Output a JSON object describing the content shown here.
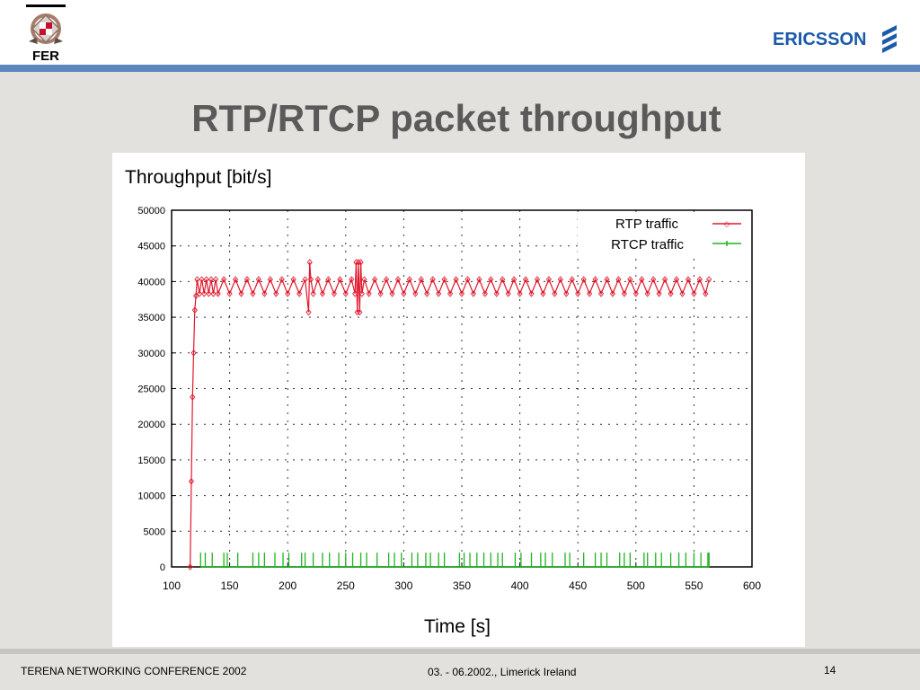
{
  "header": {
    "left_logo_text": "FER",
    "right_logo_text": "ERICSSON"
  },
  "slide": {
    "title": "RTP/RTCP packet throughput"
  },
  "colors": {
    "header_rule": "#5b86be",
    "title": "#5a5a5a",
    "rtp": "#e0182c",
    "rtcp": "#1fb41f",
    "grid": "#000000"
  },
  "chart_data": {
    "type": "line",
    "title": "Throughput [bit/s]",
    "xlabel": "Time [s]",
    "ylabel": "Throughput [bit/s]",
    "xlim": [
      100,
      600
    ],
    "ylim": [
      0,
      50000
    ],
    "xticks": [
      "100",
      "150",
      "200",
      "250",
      "300",
      "350",
      "400",
      "450",
      "500",
      "550",
      "600"
    ],
    "yticks": [
      "0",
      "5000",
      "10000",
      "15000",
      "20000",
      "25000",
      "30000",
      "35000",
      "40000",
      "45000",
      "50000"
    ],
    "grid": true,
    "legend_position": "top-right",
    "series": [
      {
        "name": "RTP traffic",
        "x": [
          116,
          117,
          118,
          119,
          120,
          121,
          122,
          124,
          126,
          128,
          130,
          132,
          134,
          136,
          138,
          140,
          145,
          150,
          155,
          160,
          165,
          170,
          175,
          180,
          185,
          190,
          195,
          200,
          205,
          210,
          215,
          218,
          219,
          220,
          222,
          226,
          230,
          235,
          240,
          245,
          250,
          255,
          258,
          259,
          260,
          261,
          262,
          263,
          264,
          266,
          270,
          275,
          280,
          285,
          290,
          295,
          300,
          305,
          310,
          315,
          320,
          325,
          330,
          335,
          340,
          345,
          350,
          355,
          360,
          365,
          370,
          375,
          380,
          385,
          390,
          395,
          400,
          405,
          410,
          415,
          420,
          425,
          430,
          435,
          440,
          445,
          450,
          455,
          460,
          465,
          470,
          475,
          480,
          485,
          490,
          495,
          500,
          505,
          510,
          515,
          520,
          525,
          530,
          535,
          540,
          545,
          550,
          555,
          560,
          563
        ],
        "y": [
          0,
          12000,
          23800,
          30000,
          36000,
          38000,
          40300,
          38300,
          40300,
          38300,
          40300,
          38300,
          40300,
          38300,
          40300,
          38300,
          40300,
          38300,
          40300,
          38300,
          40300,
          38300,
          40300,
          38300,
          40300,
          38300,
          40300,
          38300,
          40300,
          38300,
          40300,
          35700,
          42700,
          40300,
          38300,
          40300,
          38300,
          40300,
          38300,
          40300,
          38300,
          40300,
          38300,
          42700,
          35700,
          42700,
          35700,
          42700,
          38300,
          40300,
          38300,
          40300,
          38300,
          40300,
          38300,
          40300,
          38300,
          40300,
          38300,
          40300,
          38300,
          40300,
          38300,
          40300,
          38300,
          40300,
          38300,
          40300,
          38300,
          40300,
          38300,
          40300,
          38300,
          40300,
          38300,
          40300,
          38300,
          40300,
          38300,
          40300,
          38300,
          40300,
          38300,
          40300,
          38300,
          40300,
          38300,
          40300,
          38300,
          40300,
          38300,
          40300,
          38300,
          40300,
          38300,
          40300,
          38300,
          40300,
          38300,
          40300,
          38300,
          40300,
          38300,
          40300,
          38300,
          40300,
          38300,
          40300,
          38300,
          40300
        ]
      },
      {
        "name": "RTCP traffic",
        "x": [
          125,
          129,
          135,
          145,
          148,
          157,
          170,
          175,
          180,
          189,
          196,
          201,
          212,
          215,
          222,
          230,
          236,
          244,
          250,
          256,
          263,
          268,
          277,
          287,
          292,
          298,
          307,
          312,
          319,
          323,
          330,
          335,
          348,
          352,
          357,
          363,
          369,
          375,
          381,
          385,
          396,
          401,
          410,
          418,
          422,
          428,
          439,
          443,
          455,
          465,
          470,
          475,
          486,
          490,
          495,
          507,
          510,
          517,
          522,
          530,
          537,
          543,
          550,
          556,
          562,
          563
        ],
        "y": [
          1500,
          1500,
          1500,
          1500,
          1500,
          1500,
          1500,
          1500,
          1500,
          1500,
          1500,
          1500,
          1500,
          1500,
          1500,
          1500,
          1500,
          1500,
          1500,
          1500,
          1500,
          1500,
          1500,
          1500,
          1500,
          1500,
          1500,
          1500,
          1500,
          1500,
          1500,
          1500,
          1500,
          1500,
          1500,
          1500,
          1500,
          1500,
          1500,
          1500,
          1500,
          1500,
          1500,
          1500,
          1500,
          1500,
          1500,
          1500,
          1500,
          1500,
          1500,
          1500,
          1500,
          1500,
          1500,
          1500,
          1500,
          1500,
          1500,
          1500,
          1500,
          1500,
          1500,
          1500,
          1500,
          1500
        ]
      }
    ]
  },
  "footer": {
    "left": "TERENA NETWORKING CONFERENCE 2002",
    "center": "03. - 06.2002., Limerick Ireland",
    "page": "14"
  }
}
